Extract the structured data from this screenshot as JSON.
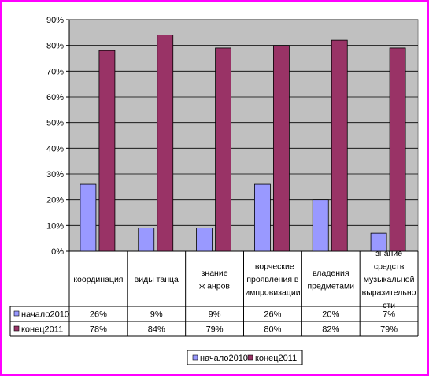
{
  "colors": {
    "frame": "#ff00ff",
    "plot_bg": "#c0c0c0",
    "series_start": "#9999ff",
    "series_end": "#993366"
  },
  "chart_data": {
    "type": "bar",
    "title": "",
    "xlabel": "",
    "ylabel": "",
    "ylim": [
      0,
      90
    ],
    "y_ticks": [
      "0%",
      "10%",
      "20%",
      "30%",
      "40%",
      "50%",
      "60%",
      "70%",
      "80%",
      "90%"
    ],
    "categories": [
      [
        "координация"
      ],
      [
        "виды танца"
      ],
      [
        "знание",
        "ж анров"
      ],
      [
        "творческие",
        "проявления в",
        "импровизации"
      ],
      [
        "владения",
        "предметами"
      ],
      [
        "знание",
        "средств",
        "музыкальной",
        "выразительно",
        "сти"
      ]
    ],
    "series": [
      {
        "name": "начало2010",
        "values": [
          26,
          9,
          9,
          26,
          20,
          7
        ],
        "labels": [
          "26%",
          "9%",
          "9%",
          "26%",
          "20%",
          "7%"
        ]
      },
      {
        "name": "конец2011",
        "values": [
          78,
          84,
          79,
          80,
          82,
          79
        ],
        "labels": [
          "78%",
          "84%",
          "79%",
          "80%",
          "82%",
          "79%"
        ]
      }
    ],
    "grid": true,
    "legend": "bottom"
  }
}
